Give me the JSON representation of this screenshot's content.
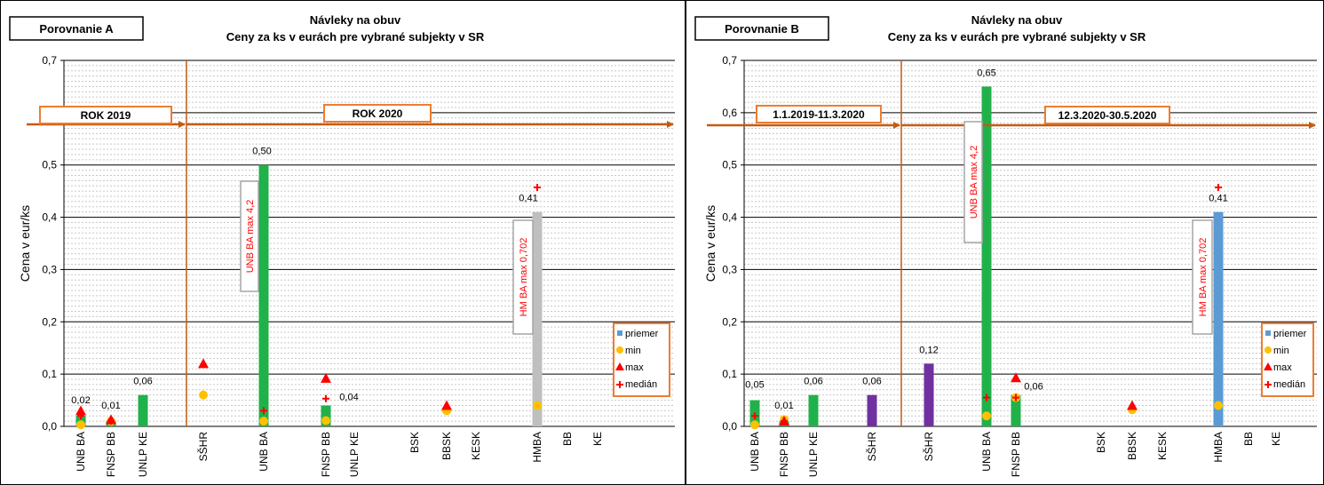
{
  "chart_data": [
    {
      "type": "bar",
      "panel_label": "Porovnanie A",
      "title": "Návleky na obuv",
      "subtitle": "Ceny za ks v eurách pre vybrané subjekty v SR",
      "ylabel": "Cena v eur/ks",
      "ylim": [
        0,
        0.7
      ],
      "yticks": [
        "0,0",
        "0,1",
        "0,2",
        "0,3",
        "0,4",
        "0,5",
        "0,6",
        "0,7"
      ],
      "categories": [
        "UNB BA",
        "FNSP BB",
        "UNLP KE",
        "",
        "SŠHR",
        "",
        "UNB BA",
        "",
        "FNSP BB",
        "UNLP KE",
        "",
        "BSK",
        "BBSK",
        "KESK",
        "",
        "HMBA",
        "BB",
        "KE"
      ],
      "series": [
        {
          "name": "priemer",
          "values": [
            0.02,
            0.01,
            0.06,
            null,
            null,
            null,
            0.5,
            null,
            0.04,
            null,
            null,
            null,
            null,
            null,
            null,
            0.41,
            null,
            null
          ],
          "colors": [
            "#21b14a",
            "#21b14a",
            "#21b14a",
            null,
            null,
            null,
            "#21b14a",
            null,
            "#21b14a",
            null,
            null,
            null,
            null,
            null,
            null,
            "#bfbfbf",
            null,
            null
          ]
        },
        {
          "name": "min",
          "values": [
            0.003,
            0.01,
            null,
            null,
            0.06,
            null,
            0.01,
            null,
            0.011,
            null,
            null,
            null,
            0.03,
            null,
            null,
            0.04,
            null,
            null
          ]
        },
        {
          "name": "max",
          "values": [
            0.03,
            0.013,
            null,
            null,
            0.12,
            null,
            null,
            null,
            0.092,
            null,
            null,
            null,
            0.04,
            null,
            null,
            null,
            null,
            null
          ]
        },
        {
          "name": "medián",
          "values": [
            0.02,
            0.01,
            null,
            null,
            null,
            null,
            0.03,
            null,
            0.053,
            null,
            null,
            null,
            null,
            null,
            null,
            0.457,
            null,
            null
          ]
        }
      ],
      "value_labels": [
        "0,02",
        "0,01",
        "0,06",
        "",
        "",
        "",
        "0,50",
        "",
        "0,04",
        "",
        "",
        "",
        "",
        "",
        "",
        "0,41",
        "",
        ""
      ],
      "period_labels": [
        "ROK 2019",
        "ROK 2020"
      ],
      "annotations": [
        "UNB BA max 4,2",
        "HM BA max 0,702"
      ],
      "legend": [
        "priemer",
        "min",
        "max",
        "medián"
      ],
      "legend_position": "right",
      "colors": {
        "green": "#21b14a",
        "gray": "#bfbfbf",
        "blue": "#5b9bd5",
        "min": "#ffc000",
        "max": "#ff0000",
        "median": "#ff0000",
        "arrow": "#c55a11",
        "box": "#ed7d31"
      }
    },
    {
      "type": "bar",
      "panel_label": "Porovnanie B",
      "title": "Návleky na obuv",
      "subtitle": "Ceny za ks v eurách pre vybrané subjekty v SR",
      "ylabel": "Cena v eur/ks",
      "ylim": [
        0,
        0.7
      ],
      "yticks": [
        "0,0",
        "0,1",
        "0,2",
        "0,3",
        "0,4",
        "0,5",
        "0,6",
        "0,7"
      ],
      "categories": [
        "UNB BA",
        "FNSP BB",
        "UNLP KE",
        "",
        "SŠHR",
        "",
        "SŠHR",
        "",
        "UNB BA",
        "FNSP BB",
        "UNLP KE",
        "",
        "BSK",
        "BBSK",
        "KESK",
        "",
        "HMBA",
        "BB",
        "KE"
      ],
      "series": [
        {
          "name": "priemer",
          "values": [
            0.05,
            0.01,
            0.06,
            null,
            0.06,
            null,
            0.12,
            null,
            0.65,
            0.06,
            null,
            null,
            null,
            null,
            null,
            null,
            0.41,
            null,
            null
          ],
          "colors": [
            "#21b14a",
            "#21b14a",
            "#21b14a",
            null,
            "#7030a0",
            null,
            "#7030a0",
            null,
            "#21b14a",
            "#21b14a",
            null,
            null,
            null,
            null,
            null,
            null,
            "#5b9bd5",
            null,
            null
          ]
        },
        {
          "name": "min",
          "values": [
            0.003,
            0.013,
            null,
            null,
            null,
            null,
            null,
            null,
            0.02,
            0.055,
            null,
            null,
            null,
            0.032,
            null,
            null,
            0.04,
            null,
            null
          ]
        },
        {
          "name": "max",
          "values": [
            null,
            0.01,
            null,
            null,
            null,
            null,
            null,
            null,
            null,
            0.093,
            null,
            null,
            null,
            0.04,
            null,
            null,
            null,
            null,
            null
          ]
        },
        {
          "name": "medián",
          "values": [
            0.02,
            0.01,
            null,
            null,
            null,
            null,
            null,
            null,
            0.055,
            0.055,
            null,
            null,
            null,
            null,
            null,
            null,
            0.457,
            null,
            null
          ]
        }
      ],
      "value_labels": [
        "0,05",
        "0,01",
        "0,06",
        "",
        "0,06",
        "",
        "0,12",
        "",
        "0,65",
        "0,06",
        "",
        "",
        "",
        "",
        "",
        "",
        "0,41",
        "",
        ""
      ],
      "period_labels": [
        "1.1.2019-11.3.2020",
        "12.3.2020-30.5.2020"
      ],
      "annotations": [
        "UNB BA max 4,2",
        "HM BA max 0,702"
      ],
      "legend": [
        "priemer",
        "min",
        "max",
        "medián"
      ],
      "legend_position": "right",
      "colors": {
        "green": "#21b14a",
        "gray": "#bfbfbf",
        "blue": "#5b9bd5",
        "purple": "#7030a0",
        "min": "#ffc000",
        "max": "#ff0000",
        "median": "#ff0000",
        "arrow": "#c55a11",
        "box": "#ed7d31"
      }
    }
  ]
}
